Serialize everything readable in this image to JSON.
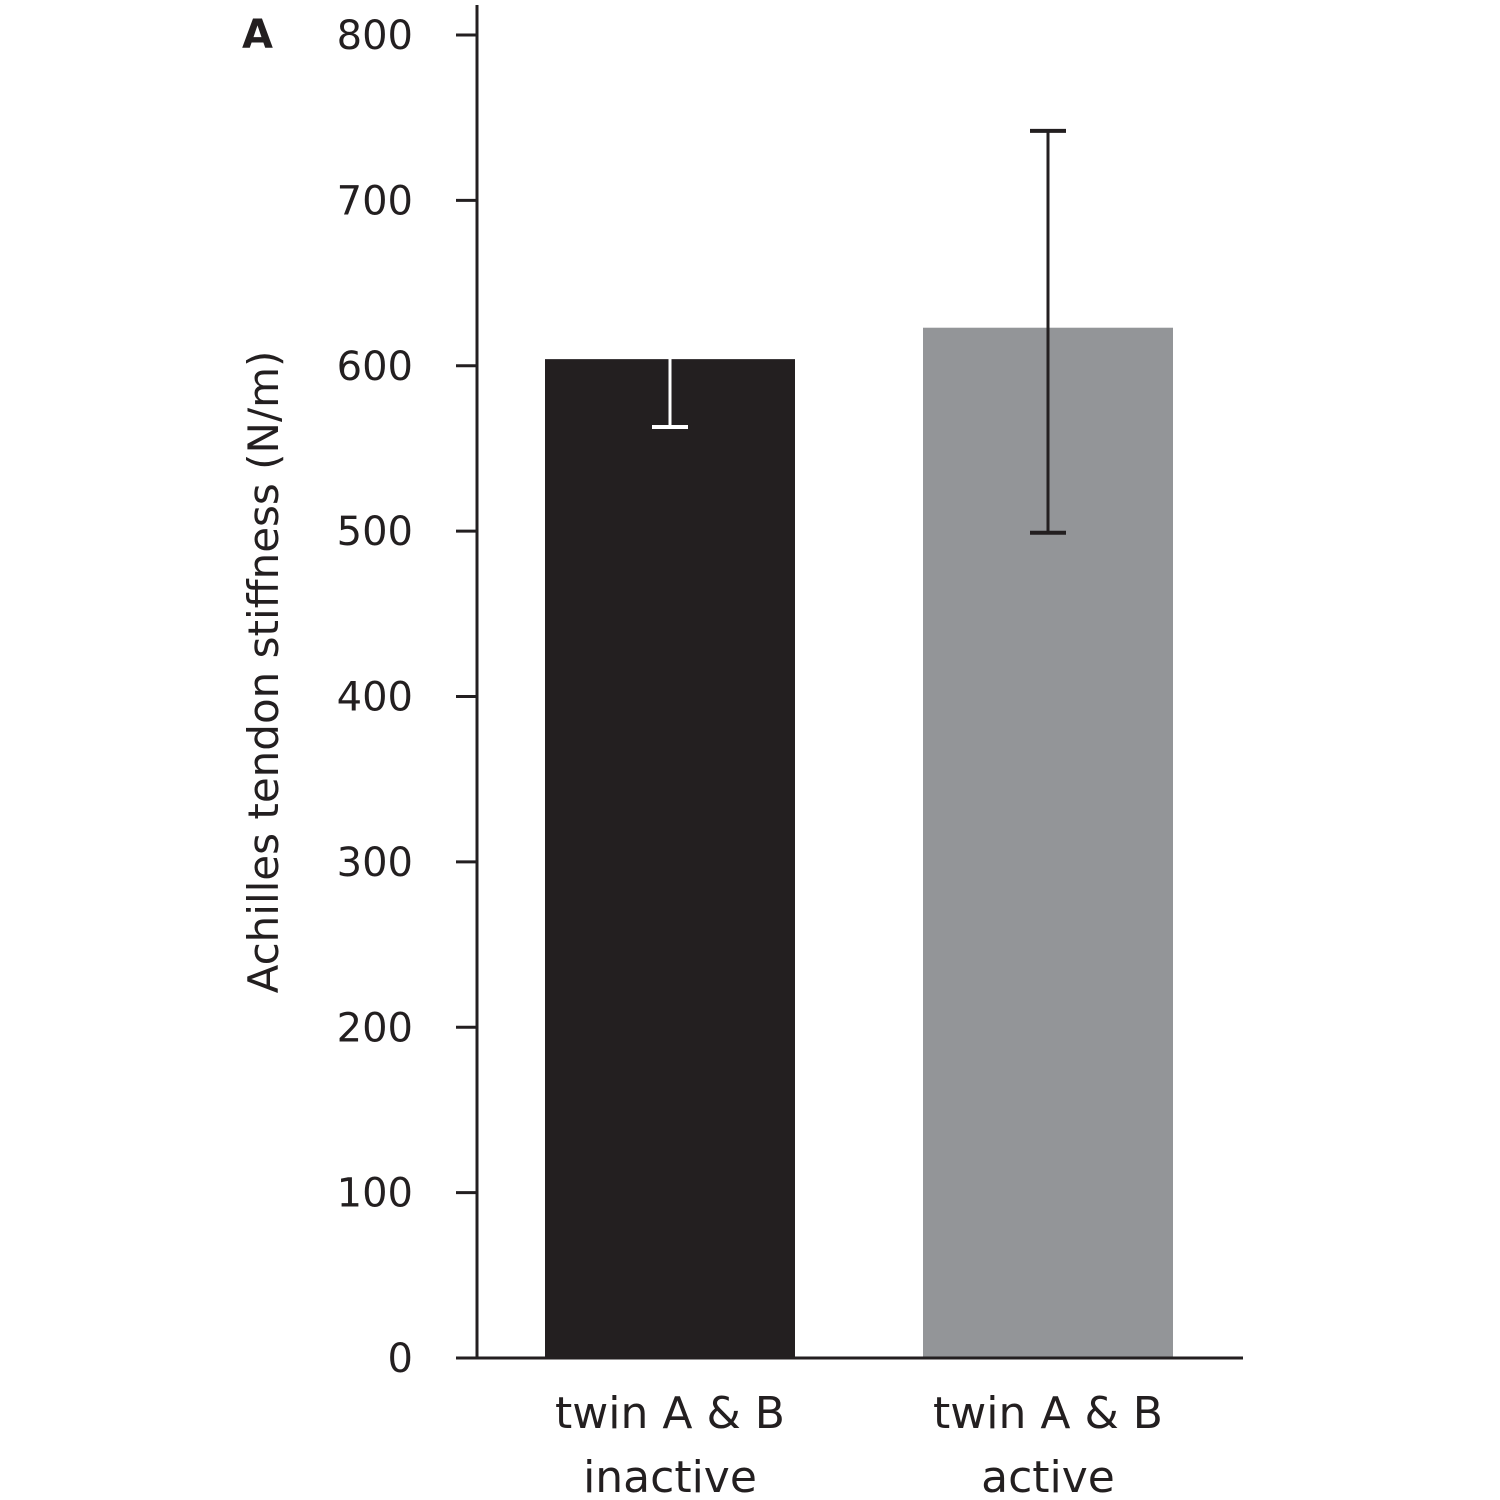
{
  "panel_label": "A",
  "chart_data": {
    "type": "bar",
    "categories": [
      [
        "twin A & B",
        "inactive"
      ],
      [
        "twin A & B",
        "active"
      ]
    ],
    "values": [
      604,
      623
    ],
    "error_bars": [
      {
        "lower": 563,
        "upper": 653
      },
      {
        "lower": 499,
        "upper": 742
      }
    ],
    "colors": [
      "#231f20",
      "#939598"
    ],
    "error_bar_colors": [
      "#ffffff",
      "#231f20"
    ],
    "title": "",
    "xlabel": "",
    "ylabel": "Achilles tendon stiffness (N/m)",
    "ylim": [
      0,
      800
    ],
    "yticks": [
      0,
      100,
      200,
      300,
      400,
      500,
      600,
      700,
      800
    ],
    "grid": false,
    "legend": "none"
  }
}
